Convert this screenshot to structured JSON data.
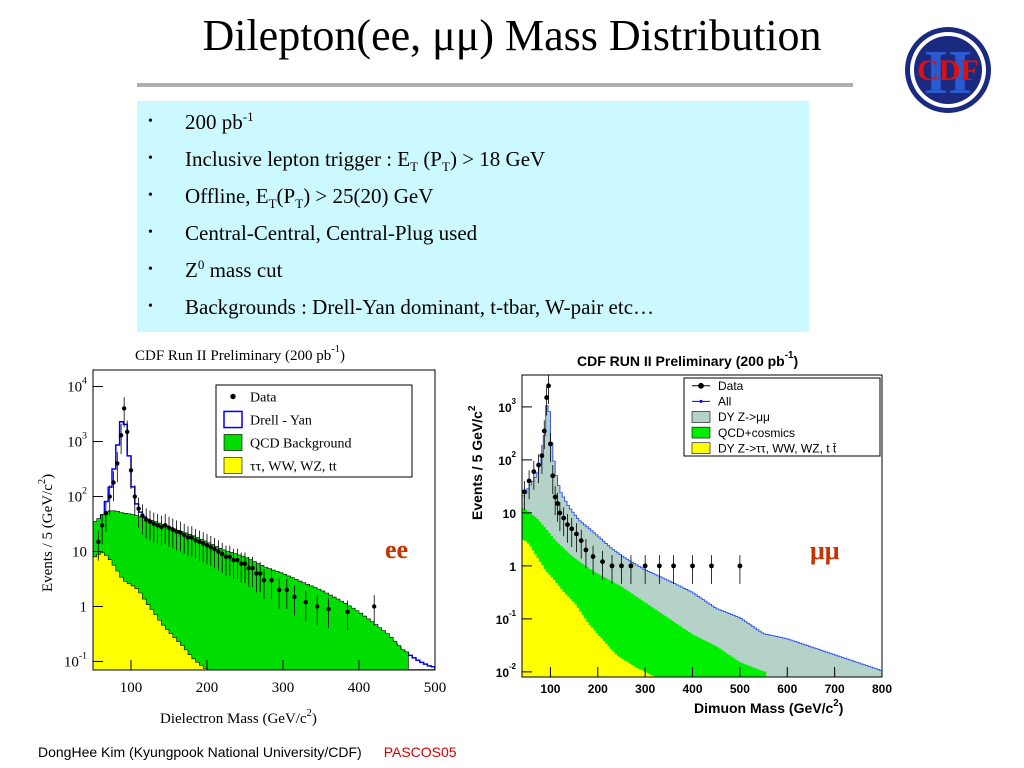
{
  "title": "Dilepton(ee, μμ) Mass Distribution",
  "logo": {
    "text": "CDF",
    "numeral": "II"
  },
  "bullets": [
    {
      "parts": [
        {
          "t": "200 pb"
        },
        {
          "t": "-1",
          "s": "sup"
        }
      ]
    },
    {
      "parts": [
        {
          "t": "Inclusive lepton trigger : E"
        },
        {
          "t": "T",
          "s": "sub"
        },
        {
          "t": " (P"
        },
        {
          "t": "T",
          "s": "sub"
        },
        {
          "t": ") > 18 GeV"
        }
      ]
    },
    {
      "parts": [
        {
          "t": "Offline, E"
        },
        {
          "t": "T",
          "s": "sub"
        },
        {
          "t": "(P"
        },
        {
          "t": "T",
          "s": "sub"
        },
        {
          "t": ") > 25(20) GeV"
        }
      ]
    },
    {
      "parts": [
        {
          "t": "Central-Central, Central-Plug used"
        }
      ]
    },
    {
      "parts": [
        {
          "t": "Z"
        },
        {
          "t": "0",
          "s": "sup"
        },
        {
          "t": " mass cut"
        }
      ]
    },
    {
      "parts": [
        {
          "t": "Backgrounds : Drell-Yan dominant, t-tbar, W-pair etc…"
        }
      ]
    }
  ],
  "chart_data": [
    {
      "type": "histogram",
      "title": "CDF Run II Preliminary (200 pb",
      "title_sup": "-1",
      "title_end": ")",
      "xlabel": "Dielectron Mass (GeV/c",
      "xlabel_sup": "2",
      "xlabel_end": ")",
      "ylabel": "Events / 5 (GeV/c",
      "ylabel_sup": "2",
      "ylabel_end": ")",
      "xlim": [
        50,
        500
      ],
      "ylim": [
        0.07,
        20000
      ],
      "log_y": true,
      "x_ticks": [
        100,
        200,
        300,
        400,
        500
      ],
      "y_ticks": [
        {
          "v": 0.1,
          "base": "10",
          "exp": "-1"
        },
        {
          "v": 1,
          "base": "1",
          "exp": ""
        },
        {
          "v": 10,
          "base": "10",
          "exp": ""
        },
        {
          "v": 100,
          "base": "10",
          "exp": "2"
        },
        {
          "v": 1000,
          "base": "10",
          "exp": "3"
        },
        {
          "v": 10000,
          "base": "10",
          "exp": "4"
        }
      ],
      "channel_label": "ee",
      "channel_color": "#c83200",
      "legend": [
        {
          "label": "Data",
          "kind": "dot"
        },
        {
          "label": "Drell - Yan",
          "kind": "box",
          "color": "#0000ee"
        },
        {
          "label": "QCD Background",
          "kind": "fill",
          "color": "#00dd00"
        },
        {
          "label": "ττ, WW, WZ, tt",
          "kind": "fill",
          "color": "#ffff00"
        }
      ],
      "series": [
        {
          "name": "Drell - Yan",
          "color": "#0000ee",
          "x": [
            55,
            60,
            65,
            70,
            75,
            80,
            85,
            90,
            95,
            100,
            105,
            110,
            115,
            120,
            130,
            140,
            150,
            160,
            180,
            200,
            220,
            250,
            280,
            300,
            320,
            350,
            380,
            400,
            420,
            440,
            460,
            480,
            495
          ],
          "y": [
            20,
            35,
            60,
            110,
            200,
            500,
            1500,
            3500,
            1200,
            250,
            90,
            60,
            45,
            40,
            32,
            27,
            24,
            22,
            17,
            13,
            9,
            6,
            4,
            3,
            2.5,
            1.5,
            0.9,
            0.6,
            0.4,
            0.25,
            0.15,
            0.1,
            0.08
          ]
        },
        {
          "name": "QCD Background",
          "color": "#00dd00",
          "x": [
            55,
            60,
            70,
            80,
            90,
            100,
            120,
            140,
            160,
            180,
            200,
            220,
            250,
            280,
            300,
            320,
            350,
            380,
            400,
            420,
            440,
            460
          ],
          "y": [
            35,
            45,
            55,
            55,
            50,
            48,
            40,
            32,
            25,
            20,
            15,
            11,
            8,
            5,
            4,
            3,
            2,
            1.2,
            0.8,
            0.5,
            0.3,
            0.15
          ]
        },
        {
          "name": "ττ, WW, WZ, tt",
          "color": "#ffff00",
          "x": [
            55,
            60,
            70,
            80,
            90,
            100,
            110,
            120,
            130,
            140,
            150,
            160,
            170,
            180,
            190,
            200,
            210
          ],
          "y": [
            8,
            10,
            8,
            5,
            3,
            2.5,
            2,
            1.2,
            0.8,
            0.5,
            0.35,
            0.25,
            0.18,
            0.12,
            0.09,
            0.07,
            0.05
          ]
        },
        {
          "name": "Data",
          "kind": "points",
          "x": [
            57,
            62,
            67,
            72,
            77,
            82,
            87,
            91,
            95,
            100,
            105,
            110,
            115,
            120,
            125,
            130,
            135,
            140,
            145,
            150,
            155,
            160,
            165,
            170,
            175,
            180,
            185,
            190,
            195,
            200,
            205,
            210,
            215,
            220,
            225,
            230,
            235,
            240,
            245,
            250,
            255,
            260,
            265,
            270,
            275,
            285,
            295,
            305,
            315,
            330,
            345,
            360,
            385,
            420
          ],
          "y": [
            15,
            30,
            50,
            100,
            180,
            400,
            1300,
            4000,
            1500,
            300,
            100,
            60,
            45,
            38,
            35,
            32,
            30,
            28,
            30,
            27,
            25,
            23,
            22,
            20,
            18,
            18,
            16,
            15,
            14,
            13,
            12,
            11,
            10,
            9,
            8,
            8,
            7,
            7,
            6,
            6,
            5,
            5,
            4,
            4,
            3,
            3,
            2,
            2,
            1.5,
            1.2,
            1,
            0.9,
            0.8,
            1
          ]
        }
      ]
    },
    {
      "type": "histogram",
      "title": "CDF RUN II Preliminary (200 pb",
      "title_sup": "-1",
      "title_end": ")",
      "xlabel": "Dimuon Mass (GeV/c",
      "xlabel_sup": "2",
      "xlabel_end": ")",
      "ylabel": "Events / 5 GeV/c",
      "ylabel_sup": "2",
      "ylabel_end": "",
      "xlim": [
        40,
        800
      ],
      "ylim": [
        0.008,
        4000
      ],
      "log_y": true,
      "x_ticks": [
        100,
        200,
        300,
        400,
        500,
        600,
        700,
        800
      ],
      "y_ticks": [
        {
          "v": 0.01,
          "base": "10",
          "exp": "-2"
        },
        {
          "v": 0.1,
          "base": "10",
          "exp": "-1"
        },
        {
          "v": 1,
          "base": "1",
          "exp": ""
        },
        {
          "v": 10,
          "base": "10",
          "exp": ""
        },
        {
          "v": 100,
          "base": "10",
          "exp": "2"
        },
        {
          "v": 1000,
          "base": "10",
          "exp": "3"
        }
      ],
      "channel_label": "μμ",
      "channel_color": "#c83200",
      "legend": [
        {
          "label": "Data",
          "kind": "dot"
        },
        {
          "label": "All",
          "kind": "line",
          "color": "#0000ee"
        },
        {
          "label": "DY Z->μμ",
          "kind": "fill",
          "color": "#b4d2c8"
        },
        {
          "label": "QCD+cosmics",
          "kind": "fill",
          "color": "#00ee00"
        },
        {
          "label": "DY Z->ττ, WW, WZ, t t̄",
          "kind": "fill",
          "color": "#ffff00"
        }
      ],
      "series": [
        {
          "name": "DY Z->μμ",
          "color": "#b4d2c8",
          "x": [
            45,
            55,
            65,
            75,
            85,
            90,
            95,
            100,
            110,
            120,
            140,
            160,
            180,
            200,
            230,
            260,
            300,
            350,
            400,
            450,
            500,
            550,
            600,
            700,
            800
          ],
          "y": [
            20,
            30,
            40,
            60,
            150,
            500,
            2000,
            300,
            60,
            25,
            12,
            7,
            5,
            3.5,
            2,
            1.3,
            0.8,
            0.5,
            0.3,
            0.15,
            0.1,
            0.05,
            0.04,
            0.02,
            0.01
          ]
        },
        {
          "name": "QCD+cosmics",
          "color": "#00ee00",
          "x": [
            45,
            55,
            70,
            90,
            110,
            130,
            150,
            180,
            200,
            250,
            300,
            350,
            400,
            450,
            500,
            550
          ],
          "y": [
            12,
            10,
            8,
            5,
            3,
            2,
            1.4,
            0.9,
            0.7,
            0.4,
            0.2,
            0.1,
            0.05,
            0.03,
            0.015,
            0.01
          ]
        },
        {
          "name": "DY Z->ττ, WW, WZ, t t̄",
          "color": "#ffff00",
          "x": [
            45,
            55,
            70,
            90,
            110,
            130,
            150,
            180,
            200,
            240,
            280,
            320
          ],
          "y": [
            3,
            2.5,
            1.5,
            0.8,
            0.5,
            0.3,
            0.2,
            0.08,
            0.05,
            0.02,
            0.012,
            0.008
          ]
        },
        {
          "name": "Data",
          "kind": "points",
          "x": [
            45,
            55,
            65,
            75,
            82,
            87,
            92,
            96,
            100,
            105,
            110,
            115,
            120,
            128,
            136,
            145,
            155,
            165,
            175,
            190,
            210,
            230,
            250,
            270,
            300,
            330,
            360,
            400,
            440,
            500
          ],
          "y": [
            25,
            40,
            60,
            80,
            120,
            350,
            1500,
            2500,
            200,
            50,
            20,
            15,
            10,
            8,
            6,
            5,
            4,
            3,
            2,
            1.5,
            1.2,
            1,
            1,
            1,
            1,
            1,
            1,
            1,
            1,
            1
          ]
        }
      ]
    }
  ]
}
